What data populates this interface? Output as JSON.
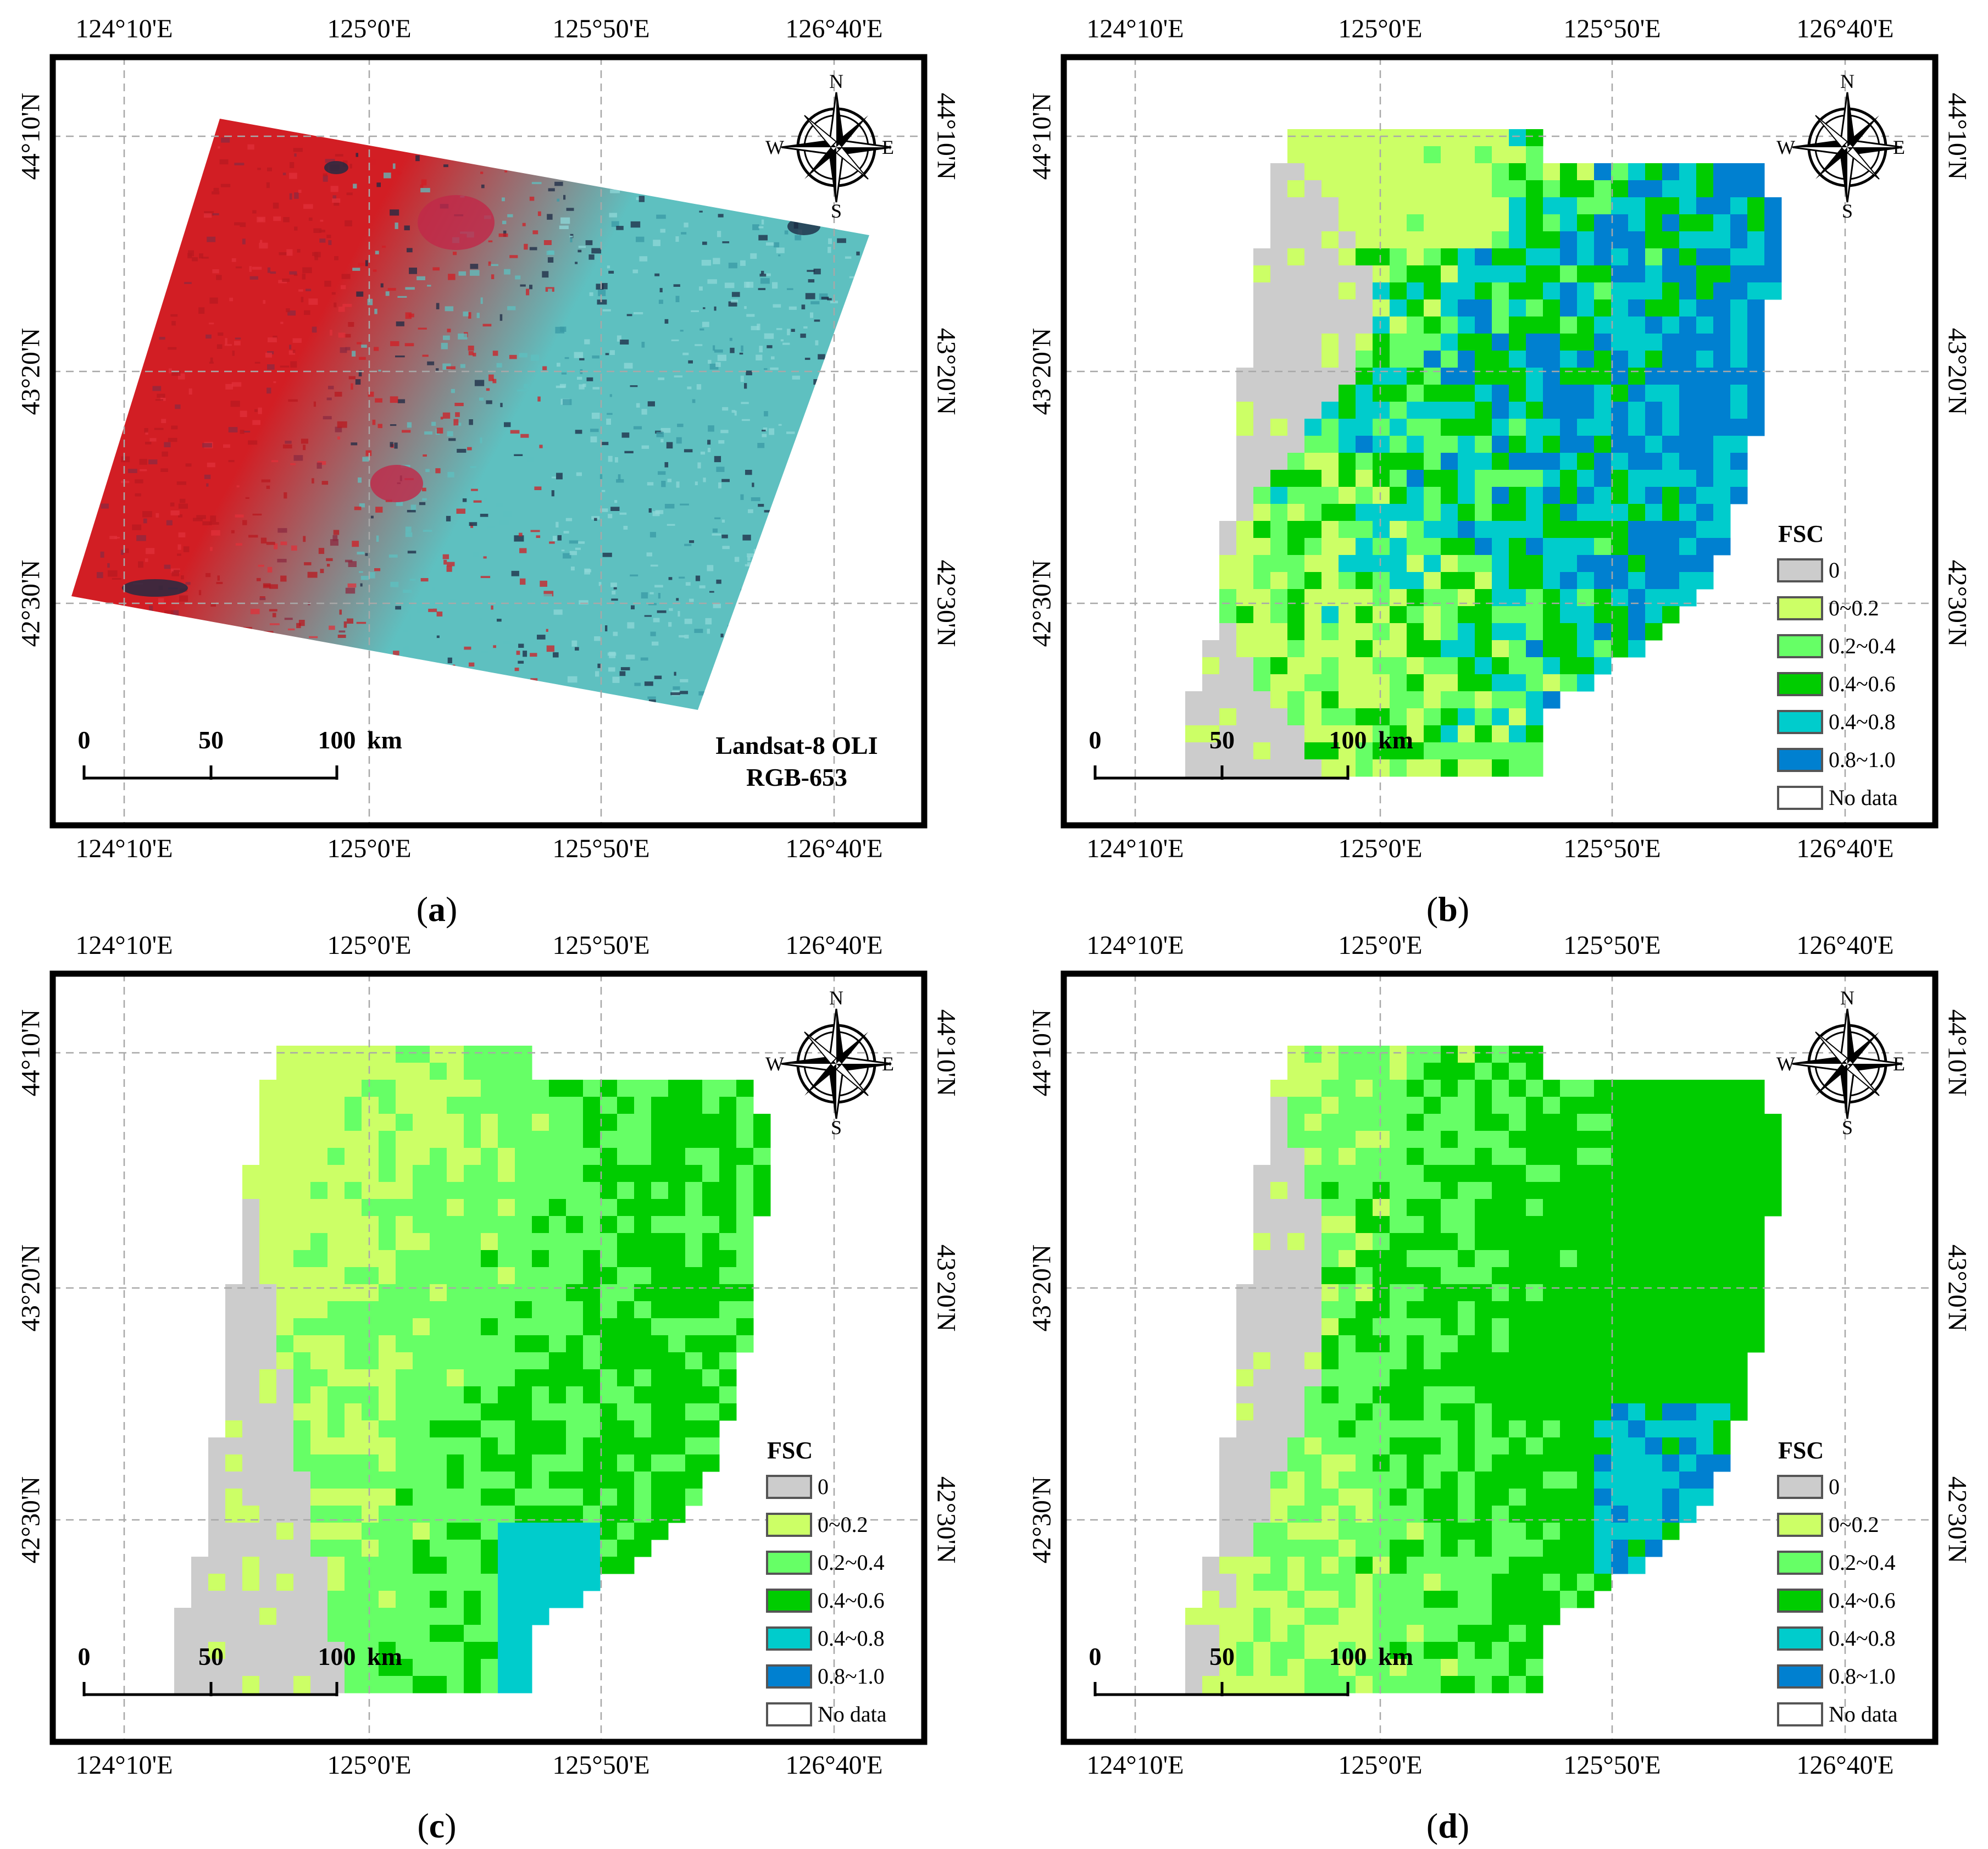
{
  "axes": {
    "top_longitudes": [
      "124°10'E",
      "125°0'E",
      "125°50'E",
      "126°40'E"
    ],
    "bottom_longitudes": [
      "124°10'E",
      "125°0'E",
      "125°50'E",
      "126°40'E"
    ],
    "latitudes": [
      "44°10'N",
      "43°20'N",
      "42°30'N"
    ]
  },
  "compass": {
    "n": "N",
    "s": "S",
    "e": "E",
    "w": "W"
  },
  "scale_bar": {
    "ticks": [
      "0",
      "50",
      "100"
    ],
    "unit": "km"
  },
  "legend": {
    "title": "FSC",
    "items": [
      {
        "label": "0",
        "color": "#cccccc"
      },
      {
        "label": "0~0.2",
        "color": "#ccff66"
      },
      {
        "label": "0.2~0.4",
        "color": "#66ff66"
      },
      {
        "label": "0.4~0.6",
        "color": "#00cc00"
      },
      {
        "label": "0.4~0.8",
        "color": "#00cccc"
      },
      {
        "label": "0.8~1.0",
        "color": "#0080d0"
      },
      {
        "label": "No data",
        "color": "#ffffff"
      }
    ]
  },
  "panels": [
    {
      "id": "a",
      "type": "image",
      "caption": {
        "open": "(",
        "letter": "a",
        "close": ")"
      },
      "sensor_lines": [
        "Landsat-8 OLI",
        "RGB-653"
      ],
      "image_colors": {
        "red": "#d21e24",
        "cyan": "#5ec0c0",
        "dark": "#1c2a44"
      }
    },
    {
      "id": "b",
      "type": "fsc",
      "caption": {
        "open": "(",
        "letter": "b",
        "close": ")"
      }
    },
    {
      "id": "c",
      "type": "fsc",
      "caption": {
        "open": "(",
        "letter": "c",
        "close": ")"
      }
    },
    {
      "id": "d",
      "type": "fsc",
      "caption": {
        "open": "(",
        "letter": "d",
        "close": ")"
      }
    }
  ]
}
